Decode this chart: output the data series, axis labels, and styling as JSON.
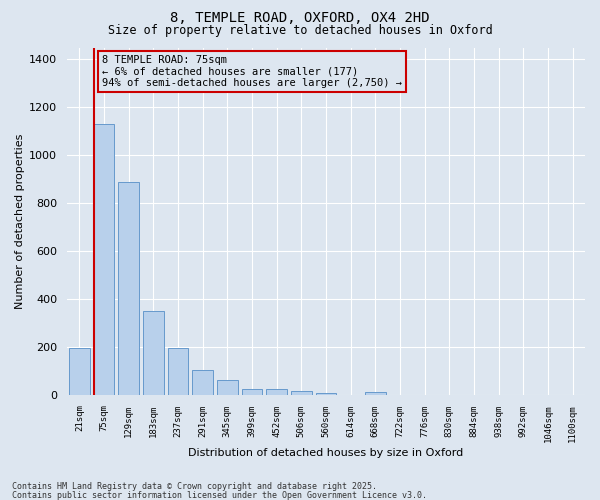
{
  "title1": "8, TEMPLE ROAD, OXFORD, OX4 2HD",
  "title2": "Size of property relative to detached houses in Oxford",
  "xlabel": "Distribution of detached houses by size in Oxford",
  "ylabel": "Number of detached properties",
  "categories": [
    "21sqm",
    "75sqm",
    "129sqm",
    "183sqm",
    "237sqm",
    "291sqm",
    "345sqm",
    "399sqm",
    "452sqm",
    "506sqm",
    "560sqm",
    "614sqm",
    "668sqm",
    "722sqm",
    "776sqm",
    "830sqm",
    "884sqm",
    "938sqm",
    "992sqm",
    "1046sqm",
    "1100sqm"
  ],
  "values": [
    195,
    1130,
    890,
    350,
    193,
    103,
    62,
    25,
    22,
    15,
    8,
    0,
    12,
    0,
    0,
    0,
    0,
    0,
    0,
    0,
    0
  ],
  "bar_color": "#b8d0eb",
  "bar_edge_color": "#6699cc",
  "vline_color": "#cc0000",
  "annotation_text": "8 TEMPLE ROAD: 75sqm\n← 6% of detached houses are smaller (177)\n94% of semi-detached houses are larger (2,750) →",
  "annotation_box_edgecolor": "#cc0000",
  "ylim": [
    0,
    1450
  ],
  "yticks": [
    0,
    200,
    400,
    600,
    800,
    1000,
    1200,
    1400
  ],
  "background_color": "#dde6f0",
  "grid_color": "#ffffff",
  "footer1": "Contains HM Land Registry data © Crown copyright and database right 2025.",
  "footer2": "Contains public sector information licensed under the Open Government Licence v3.0."
}
